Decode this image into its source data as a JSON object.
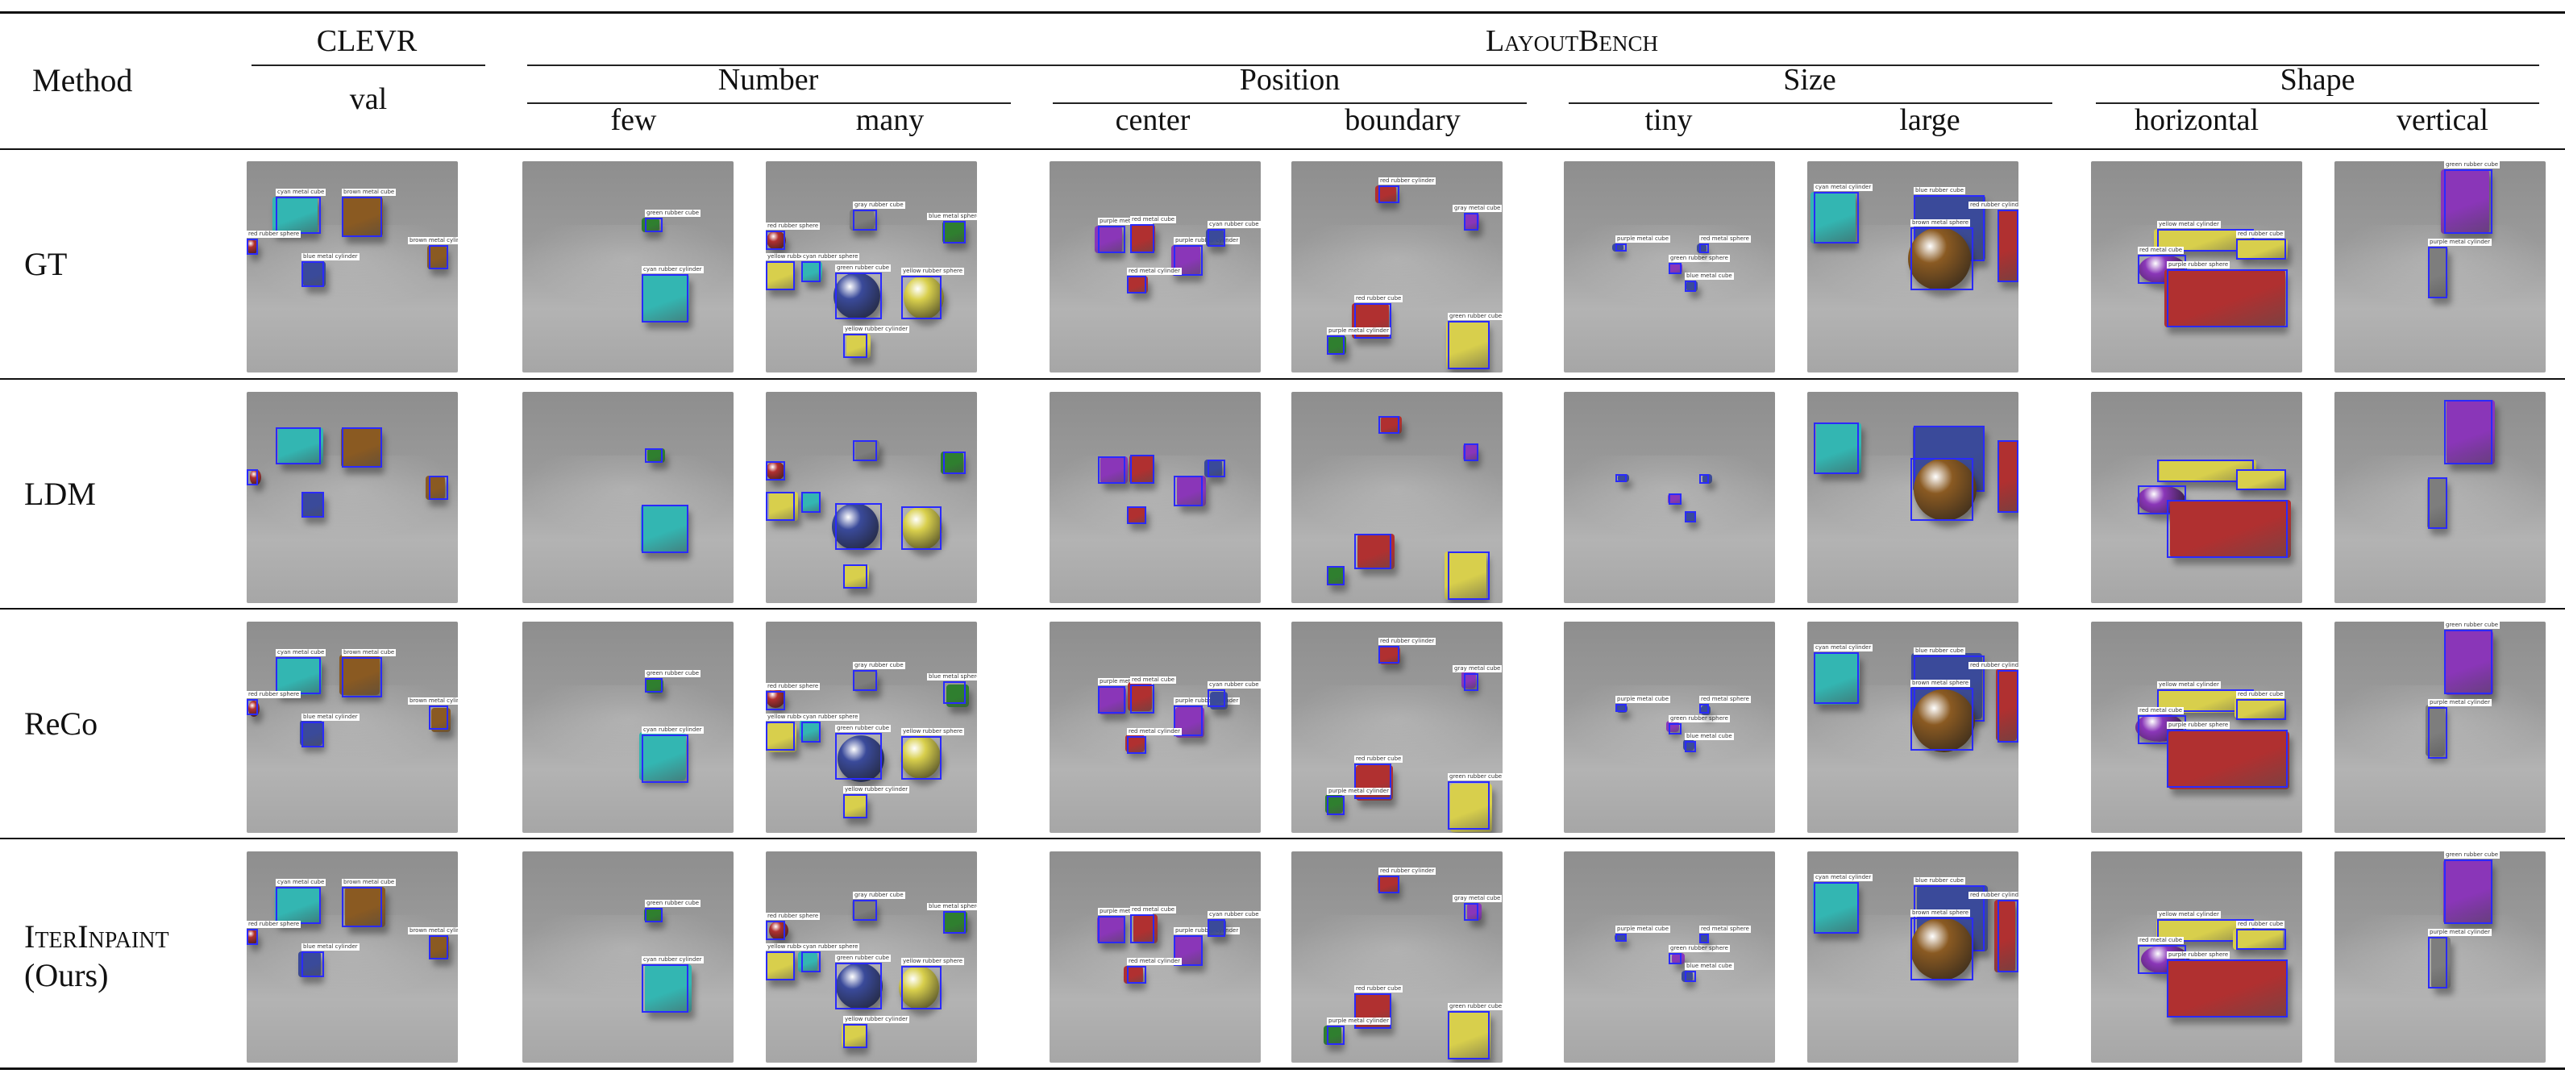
{
  "header": {
    "method": "Method",
    "clevr": "CLEVR",
    "clevr_sub": "val",
    "layoutbench": "LayoutBench",
    "groups": [
      "Number",
      "Position",
      "Size",
      "Shape"
    ],
    "subs": [
      "few",
      "many",
      "center",
      "boundary",
      "tiny",
      "large",
      "horizontal",
      "vertical"
    ]
  },
  "rows": [
    {
      "label": "GT"
    },
    {
      "label": "LDM"
    },
    {
      "label": "ReCo"
    },
    {
      "label1": "IterInpaint",
      "label2": "(Ours)"
    }
  ],
  "bbox_color": "#2a2aff",
  "tags": {
    "c0": [
      "cyan metal cube",
      "brown metal cube",
      "red rubber sphere",
      "blue metal cylinder",
      "brown metal cylinder"
    ],
    "c1": [
      "green rubber cube",
      "cyan rubber cylinder"
    ],
    "c2": [
      "gray rubber cube",
      "red rubber sphere",
      "yellow rubber cylinder",
      "cyan rubber sphere",
      "green rubber cube",
      "yellow rubber sphere",
      "blue metal sphere",
      "yellow rubber cylinder"
    ],
    "c3": [
      "purple metal cube",
      "red metal cube",
      "purple rubber cylinder",
      "red metal cylinder",
      "cyan rubber cube"
    ],
    "c4": [
      "red rubber cylinder",
      "gray metal cube",
      "red rubber cube",
      "purple metal cylinder",
      "green rubber cube",
      "yellow metal cylinder"
    ],
    "c5": [
      "purple metal cube",
      "green rubber sphere",
      "red metal sphere",
      "blue metal cube"
    ],
    "c6": [
      "cyan metal cylinder",
      "blue rubber cube",
      "brown metal sphere",
      "red rubber cylinder"
    ],
    "c7": [
      "yellow metal cylinder",
      "red metal cube",
      "purple rubber sphere",
      "red rubber cube"
    ],
    "c8": [
      "green rubber cube",
      "purple metal cylinder",
      "gray rubber cylinder"
    ]
  }
}
